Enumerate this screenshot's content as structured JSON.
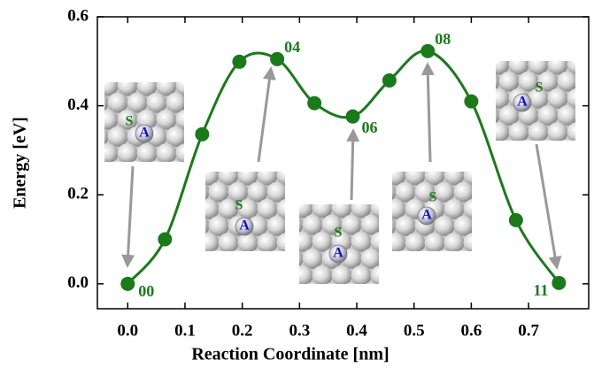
{
  "chart_data": {
    "type": "line",
    "xlabel": "Reaction Coordinate [nm]",
    "ylabel": "Energy [eV]",
    "x": [
      0.0,
      0.065,
      0.13,
      0.195,
      0.261,
      0.326,
      0.393,
      0.457,
      0.524,
      0.6,
      0.678,
      0.753
    ],
    "values": [
      0.0,
      0.1,
      0.336,
      0.499,
      0.505,
      0.406,
      0.376,
      0.457,
      0.523,
      0.41,
      0.143,
      0.002
    ],
    "point_labels": [
      "00",
      null,
      null,
      null,
      "04",
      null,
      "06",
      null,
      "08",
      null,
      null,
      "11"
    ],
    "color": "#1a7a1a",
    "xlim": [
      -0.053,
      0.805
    ],
    "ylim": [
      -0.056,
      0.6
    ],
    "xticks": [
      {
        "value": 0,
        "label": "0.0"
      },
      0.1,
      0.2,
      0.3,
      0.4,
      0.5,
      0.6,
      0.7
    ],
    "yticks": [
      {
        "value": 0,
        "label": "0.0"
      },
      0.2,
      0.4,
      0.6
    ],
    "insets": [
      {
        "labels": [
          "S",
          "A"
        ]
      },
      {
        "labels": [
          "S",
          "A"
        ]
      },
      {
        "labels": [
          "S",
          "A"
        ]
      },
      {
        "labels": [
          "S",
          "A"
        ]
      },
      {
        "labels": [
          "S",
          "A"
        ]
      }
    ]
  }
}
